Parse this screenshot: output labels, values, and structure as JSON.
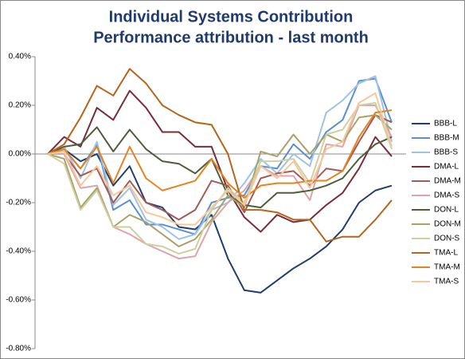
{
  "chart_data": {
    "type": "line",
    "title": [
      "Individual Systems Contribution",
      "Performance attribution - last month"
    ],
    "categories": [
      null,
      null,
      null,
      null,
      null,
      null,
      null,
      null,
      null,
      null,
      null,
      null,
      null,
      null,
      null,
      null,
      null,
      null,
      null,
      null,
      null,
      null
    ],
    "ylim": [
      -0.8,
      0.4
    ],
    "yticks": [
      {
        "value": 0.4,
        "label": "0.40%"
      },
      {
        "value": 0.2,
        "label": "0.20%"
      },
      {
        "value": 0,
        "label": "0.00%"
      },
      {
        "value": -0.2,
        "label": "-0.20%"
      },
      {
        "value": -0.4,
        "label": "-0.40%"
      },
      {
        "value": -0.6,
        "label": "-0.60%"
      },
      {
        "value": -0.8,
        "label": "-0.80%"
      }
    ],
    "grid": false,
    "legend": "right",
    "series": [
      {
        "name": "BBB-L",
        "color": "#1f3f6e",
        "values": [
          0,
          0.02,
          -0.03,
          0.0,
          -0.13,
          -0.05,
          -0.2,
          -0.22,
          -0.3,
          -0.31,
          -0.25,
          -0.43,
          -0.56,
          -0.57,
          -0.52,
          -0.47,
          -0.43,
          -0.38,
          -0.31,
          -0.2,
          -0.15,
          -0.13
        ]
      },
      {
        "name": "BBB-M",
        "color": "#5b8fd0",
        "values": [
          0,
          0.02,
          -0.06,
          0.04,
          -0.23,
          -0.19,
          -0.29,
          -0.29,
          -0.31,
          -0.33,
          -0.2,
          -0.18,
          -0.17,
          -0.05,
          -0.06,
          0.04,
          -0.02,
          0.09,
          0.14,
          0.3,
          0.31,
          0.13
        ]
      },
      {
        "name": "BBB-S",
        "color": "#9cc3e6",
        "values": [
          0,
          0.03,
          -0.1,
          0.05,
          -0.21,
          -0.14,
          -0.27,
          -0.3,
          -0.35,
          -0.33,
          -0.23,
          -0.2,
          -0.12,
          -0.02,
          -0.08,
          0.0,
          -0.05,
          0.17,
          0.22,
          0.29,
          0.32,
          0.05
        ]
      },
      {
        "name": "DMA-L",
        "color": "#7b2c3a",
        "values": [
          0,
          0.07,
          0.03,
          0.19,
          0.14,
          0.26,
          0.19,
          0.09,
          0.09,
          0.03,
          0.03,
          -0.15,
          -0.26,
          -0.32,
          -0.25,
          -0.28,
          -0.27,
          -0.21,
          -0.16,
          -0.06,
          0.07,
          -0.01
        ]
      },
      {
        "name": "DMA-M",
        "color": "#a55a5a",
        "values": [
          0,
          0.0,
          -0.09,
          -0.06,
          -0.2,
          -0.11,
          -0.2,
          -0.23,
          -0.27,
          -0.23,
          -0.11,
          -0.13,
          -0.24,
          -0.1,
          -0.08,
          -0.07,
          -0.13,
          -0.06,
          -0.07,
          0.05,
          0.16,
          0.13
        ]
      },
      {
        "name": "DMA-S",
        "color": "#e0a3a8",
        "values": [
          0,
          0.0,
          -0.14,
          -0.13,
          -0.3,
          -0.33,
          -0.37,
          -0.4,
          -0.43,
          -0.42,
          -0.28,
          -0.2,
          -0.15,
          -0.05,
          -0.09,
          -0.09,
          -0.19,
          0.04,
          0.03,
          0.2,
          0.2,
          0.07
        ]
      },
      {
        "name": "DON-L",
        "color": "#4f5e3a",
        "values": [
          0,
          0.03,
          0.04,
          0.11,
          0.01,
          0.1,
          0.02,
          -0.03,
          -0.04,
          -0.08,
          -0.02,
          -0.17,
          -0.21,
          -0.22,
          -0.16,
          -0.16,
          -0.15,
          -0.13,
          -0.1,
          -0.02,
          0.04,
          0.07
        ]
      },
      {
        "name": "DON-M",
        "color": "#a8a26a",
        "values": [
          0,
          -0.02,
          -0.22,
          -0.14,
          -0.3,
          -0.25,
          -0.28,
          -0.33,
          -0.38,
          -0.35,
          -0.27,
          -0.17,
          -0.22,
          0.01,
          -0.01,
          0.08,
          0.0,
          0.08,
          0.05,
          0.15,
          0.16,
          0.1
        ]
      },
      {
        "name": "DON-S",
        "color": "#cfcfa0",
        "values": [
          0,
          -0.04,
          -0.23,
          -0.15,
          -0.3,
          -0.3,
          -0.37,
          -0.38,
          -0.41,
          -0.39,
          -0.23,
          -0.14,
          -0.2,
          -0.03,
          -0.03,
          -0.02,
          -0.12,
          0.08,
          0.1,
          0.2,
          0.21,
          0.02
        ]
      },
      {
        "name": "TMA-L",
        "color": "#b5651d",
        "values": [
          0,
          0.04,
          0.15,
          0.28,
          0.24,
          0.35,
          0.29,
          0.2,
          0.16,
          0.13,
          0.12,
          0.0,
          -0.23,
          -0.23,
          -0.24,
          -0.27,
          -0.27,
          -0.36,
          -0.34,
          -0.34,
          -0.27,
          -0.19
        ]
      },
      {
        "name": "TMA-M",
        "color": "#e8821e",
        "values": [
          0,
          0.02,
          -0.06,
          0.03,
          -0.12,
          0.03,
          -0.1,
          -0.15,
          -0.13,
          -0.11,
          -0.02,
          -0.12,
          -0.18,
          -0.13,
          -0.12,
          -0.12,
          -0.11,
          -0.11,
          -0.07,
          0.07,
          0.17,
          0.18
        ]
      },
      {
        "name": "TMA-S",
        "color": "#f5c89a",
        "values": [
          0,
          0.01,
          -0.13,
          -0.05,
          -0.17,
          -0.13,
          -0.24,
          -0.26,
          -0.29,
          -0.29,
          -0.22,
          -0.15,
          -0.21,
          -0.05,
          -0.1,
          -0.03,
          -0.14,
          0.02,
          0.05,
          0.21,
          0.25,
          0.03
        ]
      }
    ]
  }
}
